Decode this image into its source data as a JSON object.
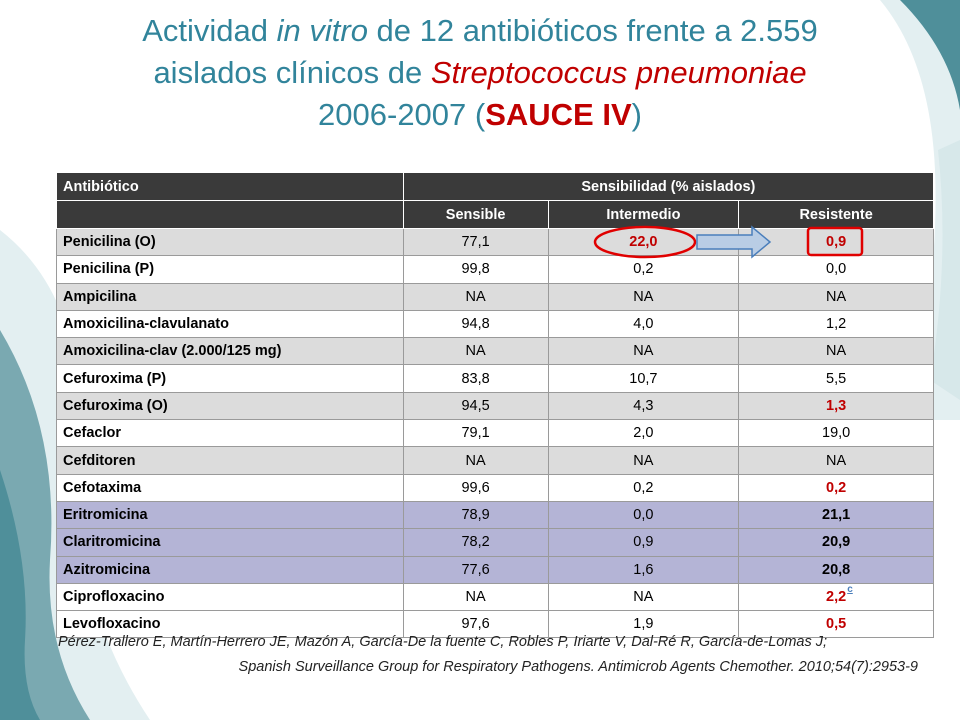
{
  "title": {
    "line1_a": "Actividad ",
    "line1_italic": "in vitro",
    "line1_b": " de 12 antibióticos frente a 2.559",
    "line2_a": "aislados clínicos de ",
    "line2_italic_red": "Streptococcus pneumoniae",
    "line3_a": "2006-2007 (",
    "line3_bold_red": "SAUCE IV",
    "line3_b": ")"
  },
  "table": {
    "header_antibiotic": "Antibiótico",
    "header_sensitivity": "Sensibilidad  (% aislados)",
    "sub_sensible": "Sensible",
    "sub_intermedio": "Intermedio",
    "sub_resistente": "Resistente",
    "rows": [
      {
        "name": "Penicilina (O)",
        "s": "77,1",
        "i": "22,0",
        "r": "0,9"
      },
      {
        "name": "Penicilina (P)",
        "s": "99,8",
        "i": "0,2",
        "r": "0,0"
      },
      {
        "name": "Ampicilina",
        "s": "NA",
        "i": "NA",
        "r": "NA"
      },
      {
        "name": "Amoxicilina-clavulanato",
        "s": "94,8",
        "i": "4,0",
        "r": "1,2"
      },
      {
        "name": "Amoxicilina-clav (2.000/125 mg)",
        "s": "NA",
        "i": "NA",
        "r": "NA"
      },
      {
        "name": "Cefuroxima (P)",
        "s": "83,8",
        "i": "10,7",
        "r": "5,5"
      },
      {
        "name": "Cefuroxima (O)",
        "s": "94,5",
        "i": "4,3",
        "r": "1,3"
      },
      {
        "name": "Cefaclor",
        "s": "79,1",
        "i": "2,0",
        "r": "19,0"
      },
      {
        "name": "Cefditoren",
        "s": "NA",
        "i": "NA",
        "r": "NA"
      },
      {
        "name": "Cefotaxima",
        "s": "99,6",
        "i": "0,2",
        "r": "0,2"
      },
      {
        "name": "Eritromicina",
        "s": "78,9",
        "i": "0,0",
        "r": "21,1"
      },
      {
        "name": "Claritromicina",
        "s": "78,2",
        "i": "0,9",
        "r": "20,9"
      },
      {
        "name": "Azitromicina",
        "s": "77,6",
        "i": "1,6",
        "r": "20,8"
      },
      {
        "name": "Ciprofloxacino",
        "s": "NA",
        "i": "NA",
        "r": "2,2",
        "r_sup": "c"
      },
      {
        "name": "Levofloxacino",
        "s": "97,6",
        "i": "1,9",
        "r": "0,5"
      }
    ]
  },
  "reference": {
    "line1": "Pérez-Trallero E, Martín-Herrero JE, Mazón A, García-De la fuente C, Robles P, Iriarte V, Dal-Ré R, García-de-Lomas J;",
    "line2": "Spanish Surveillance Group for Respiratory Pathogens. Antimicrob Agents Chemother. 2010;54(7):2953-9"
  },
  "colors": {
    "title": "#31849b",
    "highlight_red": "#c00000",
    "header_bg": "#3a3a3a",
    "row_grey": "#dcdcdc",
    "row_purple": "#b4b4d6",
    "deco_teal": "#4f8f9a",
    "deco_light": "#d7e8ea",
    "arrow_fill": "#b9cde5",
    "arrow_stroke": "#4a7ebb"
  },
  "icons": {
    "circle": "red-ellipse-highlight-icon",
    "arrow": "right-arrow-icon",
    "box": "red-box-highlight-icon"
  }
}
